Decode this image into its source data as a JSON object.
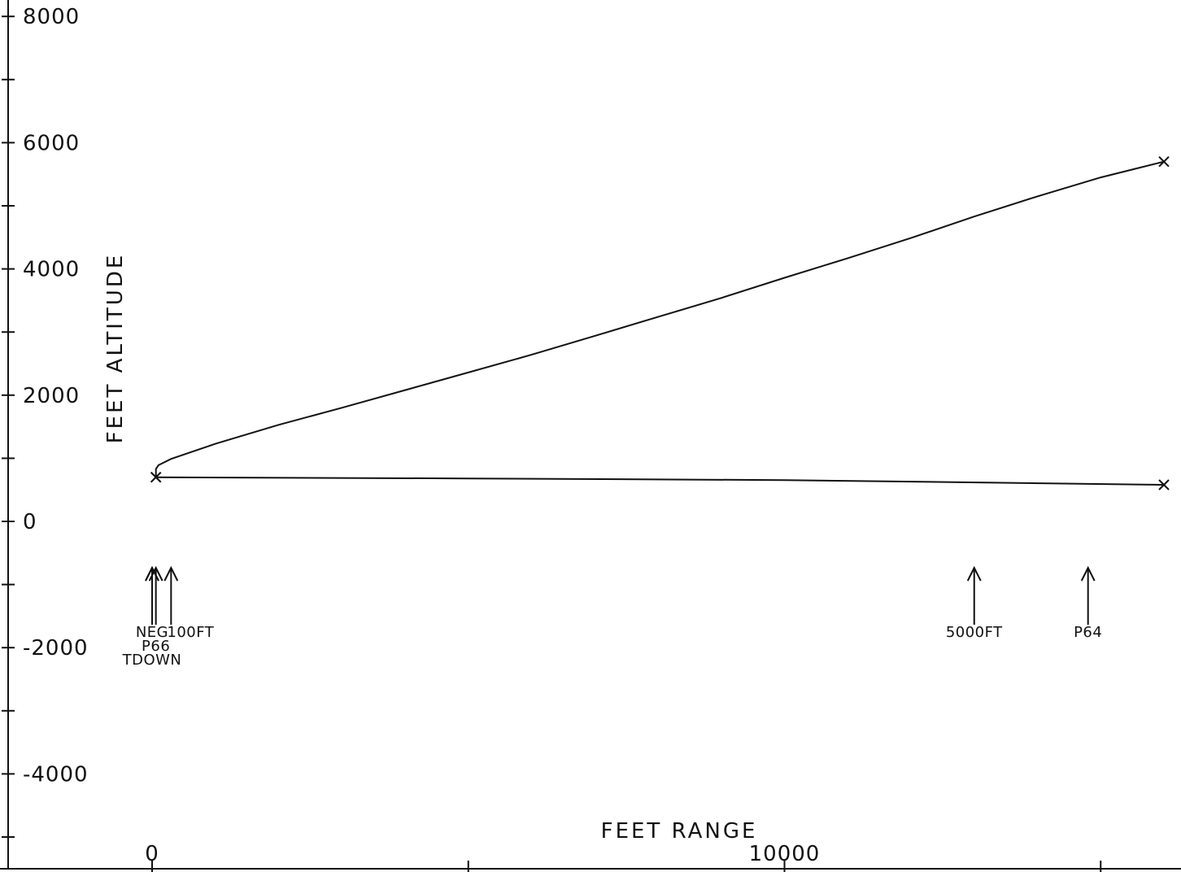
{
  "chart_data": {
    "type": "line",
    "title": "",
    "xlabel": "FEET RANGE",
    "ylabel": "FEET ALTITUDE",
    "xlim": [
      -2350,
      16100
    ],
    "ylim": [
      -5200,
      8200
    ],
    "grid": false,
    "x_tick_labels": [
      {
        "value": 0,
        "label": "0"
      },
      {
        "value": 10000,
        "label": "10000"
      }
    ],
    "x_ticks_unlabeled": [
      5000,
      15000
    ],
    "y_tick_labels": [
      {
        "value": 8000,
        "label": "8000"
      },
      {
        "value": 6000,
        "label": "6000"
      },
      {
        "value": 4000,
        "label": "4000"
      },
      {
        "value": 2000,
        "label": "2000"
      },
      {
        "value": 0,
        "label": "0"
      },
      {
        "value": -2000,
        "label": "-2000"
      },
      {
        "value": -4000,
        "label": "-4000"
      }
    ],
    "y_ticks_unlabeled": [
      7000,
      5000,
      3000,
      1000,
      -1000,
      -3000,
      -5000
    ],
    "series": [
      {
        "values": [
          [
            16000,
            5700
          ],
          [
            15000,
            5450
          ],
          [
            14000,
            5150
          ],
          [
            13000,
            4830
          ],
          [
            12000,
            4490
          ],
          [
            11000,
            4170
          ],
          [
            10000,
            3860
          ],
          [
            9000,
            3540
          ],
          [
            8000,
            3240
          ],
          [
            7000,
            2940
          ],
          [
            6000,
            2640
          ],
          [
            5000,
            2360
          ],
          [
            4000,
            2080
          ],
          [
            3000,
            1800
          ],
          [
            2000,
            1530
          ],
          [
            1000,
            1230
          ],
          [
            300,
            990
          ],
          [
            100,
            890
          ],
          [
            60,
            830
          ],
          [
            60,
            700
          ]
        ],
        "end_marker": "x"
      },
      {
        "values": [
          [
            60,
            700
          ],
          [
            5000,
            680
          ],
          [
            10000,
            655
          ],
          [
            16000,
            580
          ]
        ],
        "end_marker": "x"
      }
    ],
    "event_markers": [
      {
        "x": 0,
        "label": "NEG"
      },
      {
        "x": 60,
        "label": "P66"
      },
      {
        "x": 0,
        "label": "TDOWN"
      },
      {
        "x": 300,
        "label": "100FT"
      },
      {
        "x": 13000,
        "label": "5000FT"
      },
      {
        "x": 14800,
        "label": "P64"
      }
    ]
  }
}
